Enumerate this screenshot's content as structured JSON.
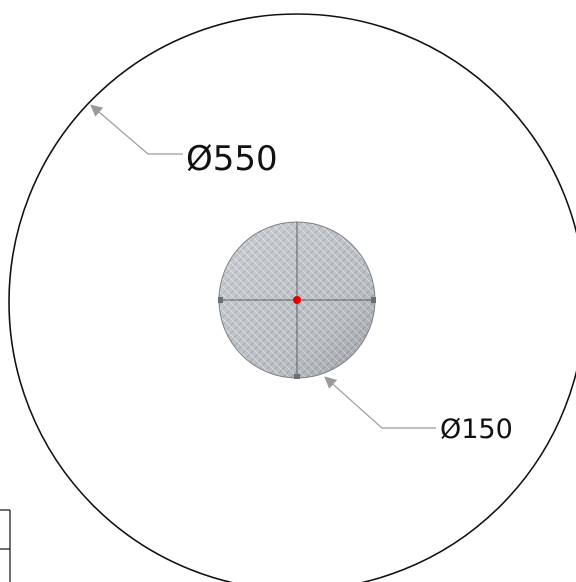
{
  "drawing": {
    "outer_diameter_label": "Ø550",
    "inner_diameter_label": "Ø150"
  },
  "colors": {
    "line": "#111111",
    "leader": "#9a9a9a",
    "plate_light": "#c8ccd0",
    "plate_dark": "#8f959b",
    "center_mark": "#e00000"
  }
}
